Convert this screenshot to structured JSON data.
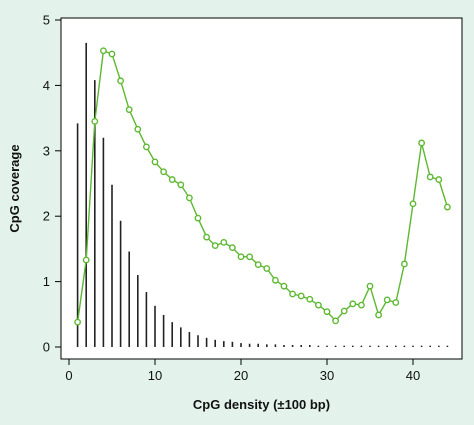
{
  "chart_data": {
    "type": "line",
    "title": "",
    "xlabel": "CpG density (±100 bp)",
    "ylabel": "CpG coverage",
    "xlim": [
      0,
      45
    ],
    "ylim": [
      0,
      5
    ],
    "xticks": [
      0,
      10,
      20,
      30,
      40
    ],
    "yticks": [
      0,
      1,
      2,
      3,
      4,
      5
    ],
    "grid": false,
    "legend": "none",
    "series": [
      {
        "kind": "bars",
        "color": "#222222",
        "x": [
          1,
          2,
          3,
          4,
          5,
          6,
          7,
          8,
          9,
          10,
          11,
          12,
          13,
          14,
          15,
          16,
          17,
          18,
          19,
          20,
          21,
          22,
          23,
          24,
          25,
          26,
          27,
          28,
          29,
          30,
          31,
          32,
          33,
          34,
          35,
          36,
          37,
          38,
          39,
          40,
          41,
          42,
          43,
          44
        ],
        "values": [
          3.42,
          4.65,
          4.08,
          3.2,
          2.48,
          1.93,
          1.46,
          1.1,
          0.84,
          0.63,
          0.49,
          0.38,
          0.3,
          0.23,
          0.18,
          0.14,
          0.11,
          0.09,
          0.08,
          0.06,
          0.05,
          0.05,
          0.04,
          0.04,
          0.03,
          0.03,
          0.03,
          0.03,
          0.02,
          0.02,
          0.02,
          0.02,
          0.02,
          0.02,
          0.02,
          0.02,
          0.02,
          0.02,
          0.02,
          0.02,
          0.02,
          0.02,
          0.02,
          0.02
        ]
      },
      {
        "kind": "line-markers",
        "color": "#5cb82e",
        "x": [
          1,
          2,
          3,
          4,
          5,
          6,
          7,
          8,
          9,
          10,
          11,
          12,
          13,
          14,
          15,
          16,
          17,
          18,
          19,
          20,
          21,
          22,
          23,
          24,
          25,
          26,
          27,
          28,
          29,
          30,
          31,
          32,
          33,
          34,
          35,
          36,
          37,
          38,
          39,
          40,
          41,
          42,
          43,
          44
        ],
        "values": [
          0.38,
          1.33,
          3.45,
          4.53,
          4.48,
          4.07,
          3.63,
          3.33,
          3.06,
          2.83,
          2.68,
          2.56,
          2.48,
          2.28,
          1.97,
          1.68,
          1.55,
          1.6,
          1.52,
          1.38,
          1.38,
          1.26,
          1.2,
          1.02,
          0.93,
          0.81,
          0.78,
          0.73,
          0.64,
          0.54,
          0.4,
          0.55,
          0.66,
          0.64,
          0.93,
          0.49,
          0.72,
          0.68,
          1.27,
          2.19,
          3.12,
          2.6,
          2.56,
          2.14
        ]
      }
    ]
  }
}
